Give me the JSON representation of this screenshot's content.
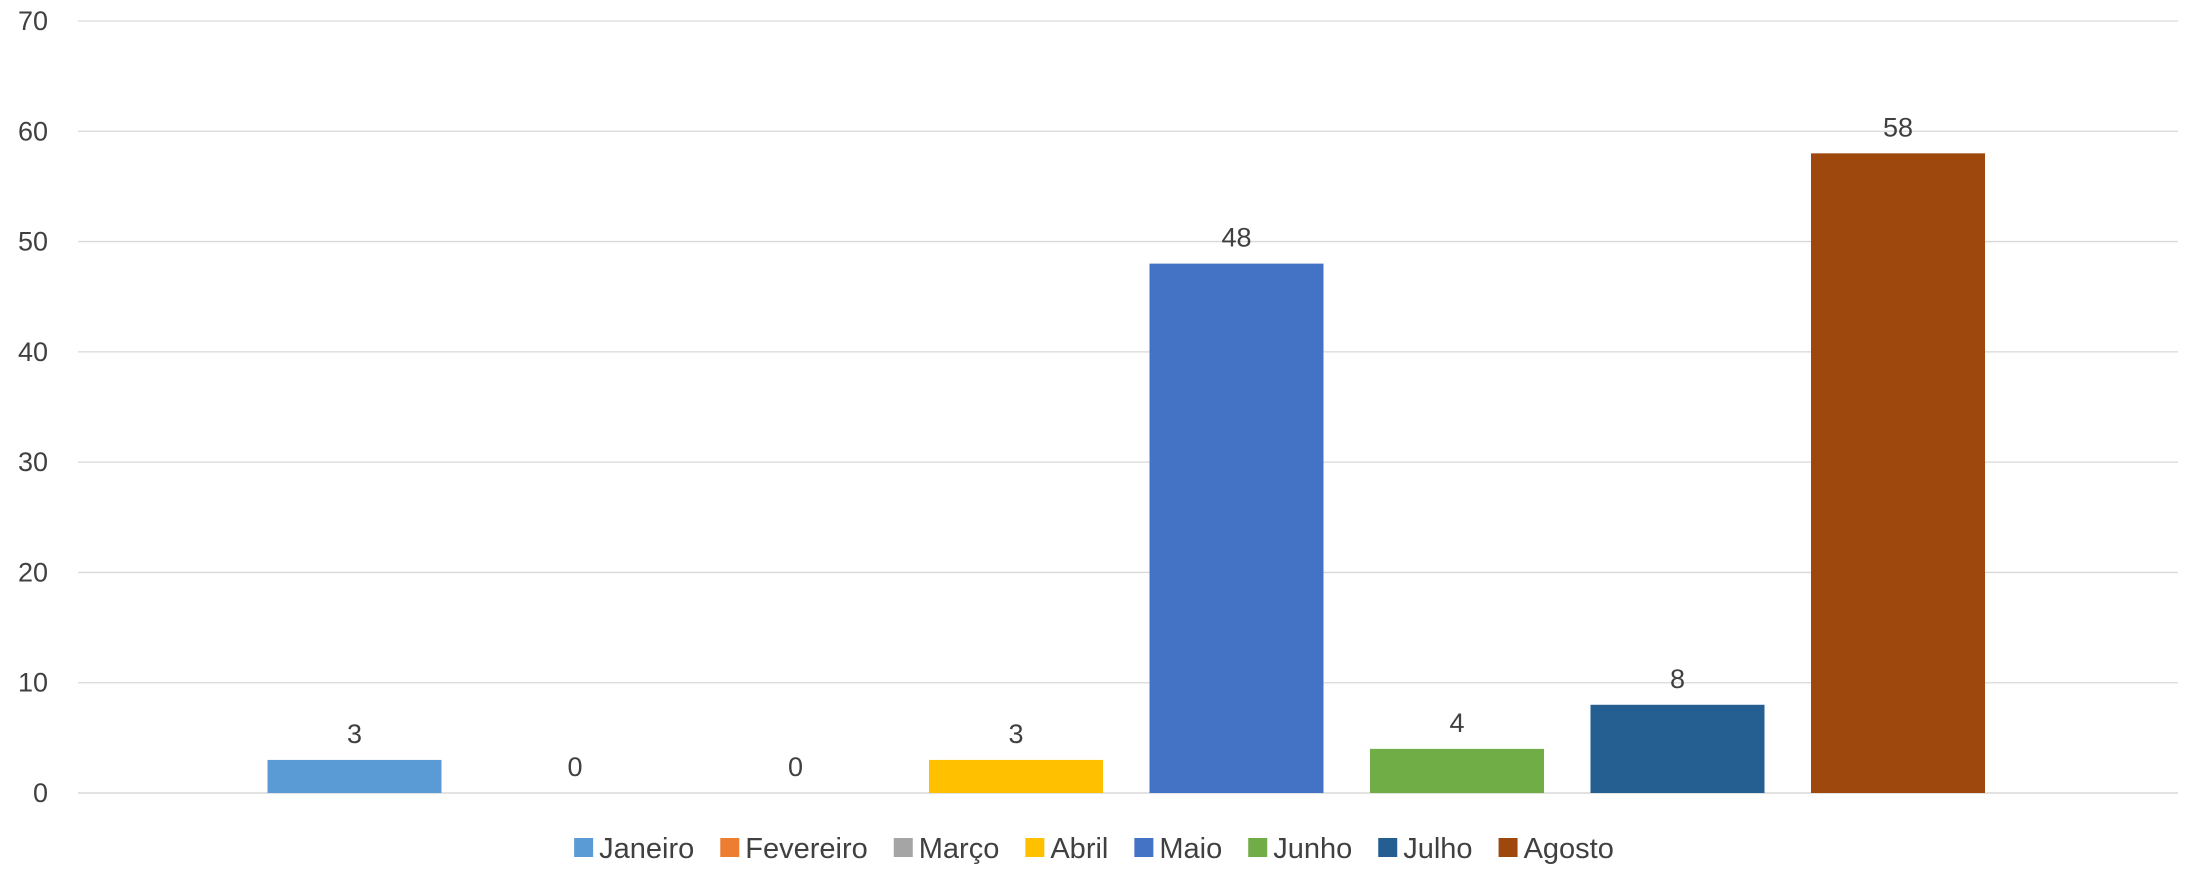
{
  "chart_data": {
    "type": "bar",
    "categories": [
      "Janeiro",
      "Fevereiro",
      "Março",
      "Abril",
      "Maio",
      "Junho",
      "Julho",
      "Agosto"
    ],
    "values": [
      3,
      0,
      0,
      3,
      48,
      4,
      8,
      58
    ],
    "colors": [
      "#5B9BD5",
      "#ED7D31",
      "#A5A5A5",
      "#FFC000",
      "#4472C4",
      "#70AD47",
      "#255E91",
      "#9E480E"
    ],
    "ylim": [
      0,
      70
    ],
    "yticks": [
      "0",
      "10",
      "20",
      "30",
      "40",
      "50",
      "60",
      "70"
    ],
    "title": "",
    "xlabel": "",
    "ylabel": "",
    "grid": true,
    "legend_position": "bottom",
    "data_labels": true
  }
}
